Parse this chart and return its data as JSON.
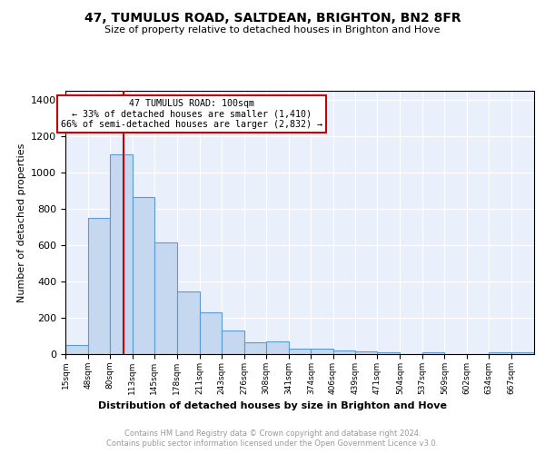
{
  "title": "47, TUMULUS ROAD, SALTDEAN, BRIGHTON, BN2 8FR",
  "subtitle": "Size of property relative to detached houses in Brighton and Hove",
  "xlabel": "Distribution of detached houses by size in Brighton and Hove",
  "ylabel": "Number of detached properties",
  "bar_color": "#c5d8f0",
  "bar_edge_color": "#5b9bd5",
  "background_color": "#eaf0fb",
  "grid_color": "#ffffff",
  "annotation_box_color": "#cc0000",
  "annotation_text": "47 TUMULUS ROAD: 100sqm\n← 33% of detached houses are smaller (1,410)\n66% of semi-detached houses are larger (2,832) →",
  "vline_x": 100,
  "vline_color": "#cc0000",
  "categories": [
    "15sqm",
    "48sqm",
    "80sqm",
    "113sqm",
    "145sqm",
    "178sqm",
    "211sqm",
    "243sqm",
    "276sqm",
    "308sqm",
    "341sqm",
    "374sqm",
    "406sqm",
    "439sqm",
    "471sqm",
    "504sqm",
    "537sqm",
    "569sqm",
    "602sqm",
    "634sqm",
    "667sqm"
  ],
  "bin_edges": [
    15,
    48,
    80,
    113,
    145,
    178,
    211,
    243,
    276,
    308,
    341,
    374,
    406,
    439,
    471,
    504,
    537,
    569,
    602,
    634,
    667,
    700
  ],
  "values": [
    48,
    752,
    1100,
    867,
    613,
    343,
    228,
    130,
    65,
    70,
    28,
    28,
    20,
    15,
    10,
    0,
    10,
    0,
    0,
    10,
    10
  ],
  "ylim": [
    0,
    1450
  ],
  "footnote_line1": "Contains HM Land Registry data © Crown copyright and database right 2024.",
  "footnote_line2": "Contains public sector information licensed under the Open Government Licence v3.0."
}
